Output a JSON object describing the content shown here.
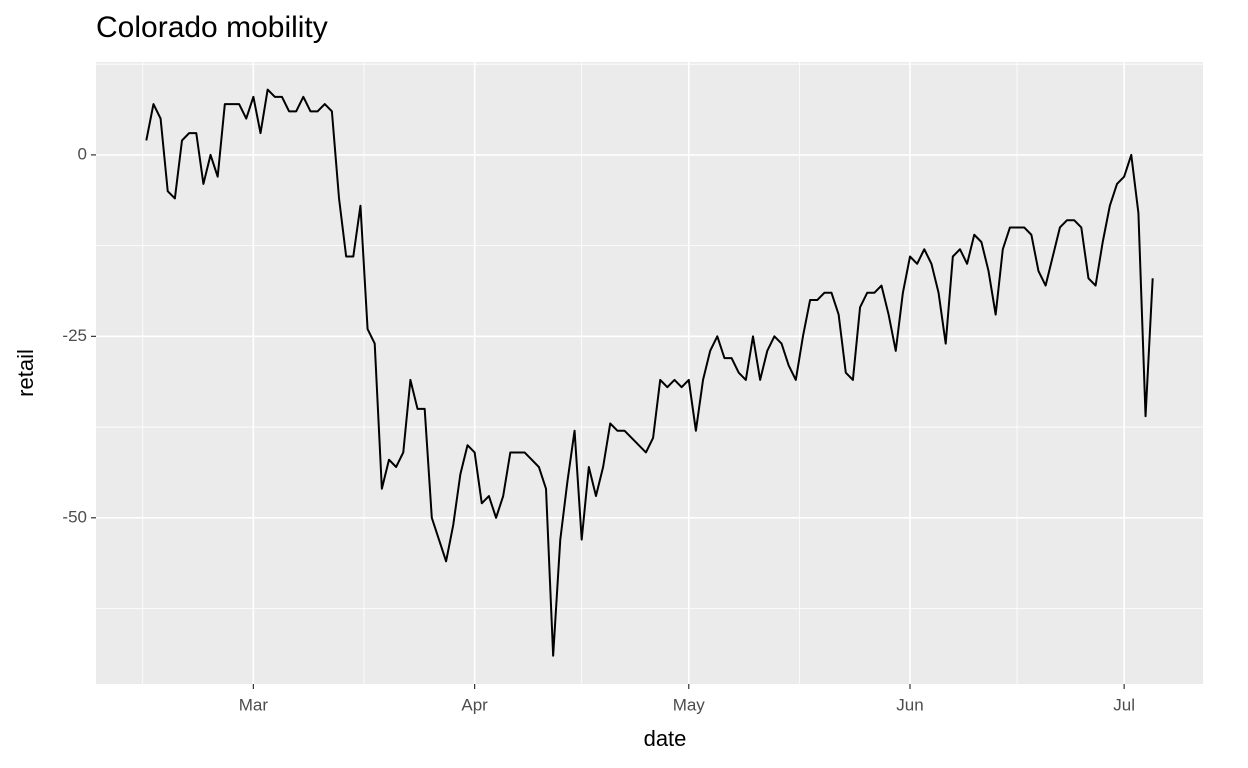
{
  "chart_data": {
    "type": "line",
    "title": "Colorado mobility",
    "x_label": "date",
    "y_label": "retail",
    "categories": [
      null,
      null,
      null,
      null,
      null,
      null,
      null,
      null,
      null,
      null,
      null,
      null,
      null,
      null,
      null,
      "Mar",
      null,
      null,
      null,
      null,
      null,
      null,
      null,
      null,
      null,
      null,
      null,
      null,
      null,
      null,
      null,
      null,
      null,
      null,
      null,
      null,
      null,
      null,
      null,
      null,
      null,
      null,
      null,
      null,
      null,
      null,
      "Apr",
      null,
      null,
      null,
      null,
      null,
      null,
      null,
      null,
      null,
      null,
      null,
      null,
      null,
      null,
      null,
      null,
      null,
      null,
      null,
      null,
      null,
      null,
      null,
      null,
      null,
      null,
      null,
      null,
      null,
      "May",
      null,
      null,
      null,
      null,
      null,
      null,
      null,
      null,
      null,
      null,
      null,
      null,
      null,
      null,
      null,
      null,
      null,
      null,
      null,
      null,
      null,
      null,
      null,
      null,
      null,
      null,
      null,
      null,
      null,
      null,
      "Jun",
      null,
      null,
      null,
      null,
      null,
      null,
      null,
      null,
      null,
      null,
      null,
      null,
      null,
      null,
      null,
      null,
      null,
      null,
      null,
      null,
      null,
      null,
      null,
      null,
      null,
      null,
      null,
      null,
      null,
      "Jul",
      null,
      null,
      null,
      null
    ],
    "series": [
      {
        "name": "retail",
        "color": "#000000",
        "values": [
          2,
          7,
          5,
          -5,
          -6,
          2,
          3,
          3,
          -4,
          0,
          -3,
          7,
          7,
          7,
          5,
          8,
          3,
          9,
          8,
          8,
          6,
          6,
          8,
          6,
          6,
          7,
          6,
          -6,
          -14,
          -14,
          -7,
          -24,
          -26,
          -46,
          -42,
          -43,
          -41,
          -31,
          -35,
          -35,
          -50,
          -53,
          -56,
          -51,
          -44,
          -40,
          -41,
          -48,
          -47,
          -50,
          -47,
          -41,
          -41,
          -41,
          -42,
          -43,
          -46,
          -69,
          -53,
          -45,
          -38,
          -53,
          -43,
          -47,
          -43,
          -37,
          -38,
          -38,
          -39,
          -40,
          -41,
          -39,
          -31,
          -32,
          -31,
          -32,
          -31,
          -38,
          -31,
          -27,
          -25,
          -28,
          -28,
          -30,
          -31,
          -25,
          -31,
          -27,
          -25,
          -26,
          -29,
          -31,
          -25,
          -20,
          -20,
          -19,
          -19,
          -22,
          -30,
          -31,
          -21,
          -19,
          -19,
          -18,
          -22,
          -27,
          -19,
          -14,
          -15,
          -13,
          -15,
          -19,
          -26,
          -14,
          -13,
          -15,
          -11,
          -12,
          -16,
          -22,
          -13,
          -10,
          -10,
          -10,
          -11,
          -16,
          -18,
          -14,
          -10,
          -9,
          -9,
          -10,
          -17,
          -18,
          -12,
          -7,
          -4,
          -3,
          0,
          -8,
          -36,
          -17
        ]
      }
    ],
    "ylim": [
      -72.9,
      12.8
    ],
    "yticks": [
      -50,
      -25,
      0
    ],
    "grid": true
  }
}
